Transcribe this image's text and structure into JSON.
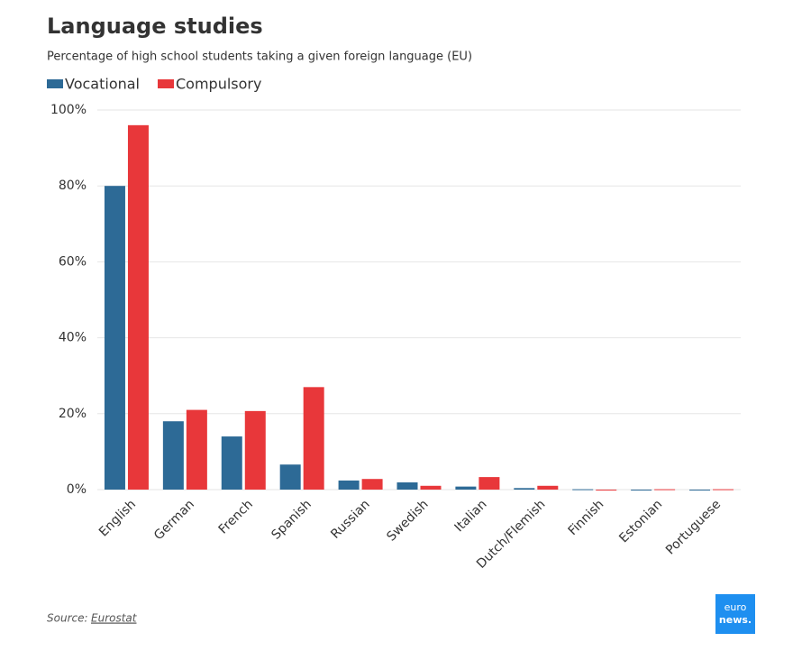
{
  "chart_data": {
    "type": "bar",
    "title": "Language studies",
    "subtitle": "Percentage of high school students taking a given foreign language (EU)",
    "categories": [
      "English",
      "German",
      "French",
      "Spanish",
      "Russian",
      "Swedish",
      "Italian",
      "Dutch/Flemish",
      "Finnish",
      "Estonian",
      "Portuguese"
    ],
    "series": [
      {
        "name": "Vocational",
        "color": "#2d6a96",
        "values": [
          80,
          18,
          14,
          6.6,
          2.4,
          1.9,
          0.8,
          0.4,
          0.1,
          0,
          0
        ]
      },
      {
        "name": "Compulsory",
        "color": "#e8373a",
        "values": [
          96,
          21,
          20.7,
          27,
          2.8,
          1,
          3.3,
          1,
          0,
          0.1,
          0.1
        ]
      }
    ],
    "ylim": [
      0,
      100
    ],
    "yticks": [
      {
        "value": 0,
        "label": "0%"
      },
      {
        "value": 20,
        "label": "20%"
      },
      {
        "value": 40,
        "label": "40%"
      },
      {
        "value": 60,
        "label": "60%"
      },
      {
        "value": 80,
        "label": "80%"
      },
      {
        "value": 100,
        "label": "100%"
      }
    ],
    "grid": true,
    "source_label": "Source:",
    "source": "Eurostat",
    "logo": [
      "euro",
      "news."
    ]
  }
}
